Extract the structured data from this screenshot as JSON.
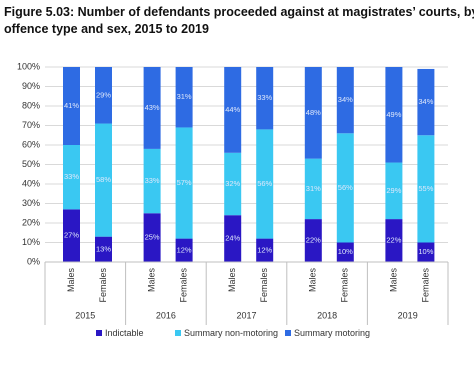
{
  "chart_data": {
    "type": "stacked_bar",
    "title_lines": [
      "Figure 5.03: Number of defendants proceeded against at magistrates’ courts, by",
      "offence type and sex, 2015 to 2019"
    ],
    "groups": [
      "2015",
      "2016",
      "2017",
      "2018",
      "2019"
    ],
    "categories": [
      "Males",
      "Females",
      "Males",
      "Females",
      "Males",
      "Females",
      "Males",
      "Females",
      "Males",
      "Females"
    ],
    "series": [
      {
        "name": "Indictable",
        "color": "#2a17c4",
        "values": [
          27,
          13,
          25,
          12,
          24,
          12,
          22,
          10,
          22,
          10
        ],
        "value_labels": [
          "27%",
          "13%",
          "25%",
          "12%",
          "24%",
          "12%",
          "22%",
          "10%",
          "22%",
          "10%"
        ]
      },
      {
        "name": "Summary non-motoring",
        "color": "#3ac8f2",
        "values": [
          33,
          58,
          33,
          57,
          32,
          56,
          31,
          56,
          29,
          55
        ],
        "value_labels": [
          "33%",
          "58%",
          "33%",
          "57%",
          "32%",
          "56%",
          "31%",
          "56%",
          "29%",
          "55%"
        ]
      },
      {
        "name": "Summary motoring",
        "color": "#2e6be3",
        "values": [
          41,
          29,
          43,
          31,
          44,
          33,
          48,
          34,
          49,
          34
        ],
        "value_labels": [
          "41%",
          "29%",
          "43%",
          "31%",
          "44%",
          "33%",
          "48%",
          "34%",
          "49%",
          "34%"
        ]
      }
    ],
    "ylim": [
      0,
      100
    ],
    "yticks": [
      {
        "value": 0,
        "label": "0%"
      },
      {
        "value": 10,
        "label": "10%"
      },
      {
        "value": 20,
        "label": "20%"
      },
      {
        "value": 30,
        "label": "30%"
      },
      {
        "value": 40,
        "label": "40%"
      },
      {
        "value": 50,
        "label": "50%"
      },
      {
        "value": 60,
        "label": "60%"
      },
      {
        "value": 70,
        "label": "70%"
      },
      {
        "value": 80,
        "label": "80%"
      },
      {
        "value": 90,
        "label": "90%"
      },
      {
        "value": 100,
        "label": "100%"
      }
    ],
    "grid": true,
    "legend": "bottom"
  }
}
